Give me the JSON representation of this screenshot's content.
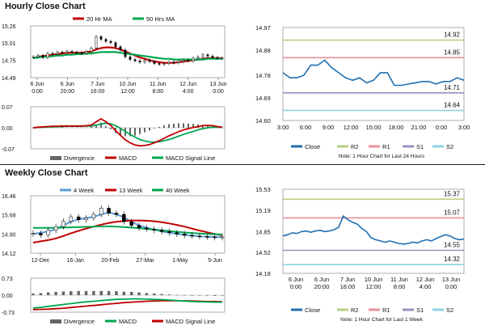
{
  "hourly": {
    "title": "Hourly Close Chart",
    "price_chart": {
      "type": "candlestick",
      "legend": [
        {
          "name": "20 Hr MA",
          "color": "#c00000"
        },
        {
          "name": "50 Hrs MA",
          "color": "#00a650"
        }
      ],
      "ylim": [
        14.49,
        15.26
      ],
      "y_ticks": [
        "15.26",
        "15.01",
        "14.75",
        "14.49"
      ],
      "x_ticks": [
        {
          "date": "6 Jun",
          "time": "0:00"
        },
        {
          "date": "6 Jun",
          "time": "20:00"
        },
        {
          "date": "7 Jun",
          "time": "16:00"
        },
        {
          "date": "10 Jun",
          "time": "12:00"
        },
        {
          "date": "11 Jun",
          "time": "8:00"
        },
        {
          "date": "12 Jun",
          "time": "4:00"
        },
        {
          "date": "13 Jun",
          "time": "0:00"
        }
      ],
      "close": [
        14.8,
        14.82,
        14.79,
        14.85,
        14.84,
        14.87,
        14.86,
        14.88,
        14.87,
        14.86,
        14.85,
        14.88,
        14.93,
        15.1,
        15.06,
        15.03,
        15.01,
        14.95,
        14.9,
        14.8,
        14.76,
        14.74,
        14.72,
        14.75,
        14.73,
        14.7,
        14.69,
        14.7,
        14.72,
        14.71,
        14.73,
        14.75,
        14.74,
        14.78,
        14.8,
        14.83,
        14.81,
        14.79,
        14.78,
        14.78
      ],
      "ma20": [
        14.78,
        14.8,
        14.81,
        14.82,
        14.83,
        14.84,
        14.85,
        14.86,
        14.86,
        14.86,
        14.86,
        14.87,
        14.88,
        14.91,
        14.93,
        14.94,
        14.94,
        14.93,
        14.91,
        14.88,
        14.85,
        14.82,
        14.79,
        14.77,
        14.75,
        14.73,
        14.72,
        14.71,
        14.71,
        14.71,
        14.72,
        14.73,
        14.74,
        14.75,
        14.76,
        14.77,
        14.78,
        14.78,
        14.78,
        14.78
      ],
      "ma50": [
        14.78,
        14.79,
        14.8,
        14.8,
        14.81,
        14.82,
        14.82,
        14.83,
        14.83,
        14.84,
        14.84,
        14.85,
        14.85,
        14.86,
        14.87,
        14.87,
        14.87,
        14.87,
        14.86,
        14.85,
        14.84,
        14.83,
        14.82,
        14.81,
        14.8,
        14.79,
        14.78,
        14.77,
        14.77,
        14.76,
        14.76,
        14.76,
        14.76,
        14.76,
        14.76,
        14.76,
        14.77,
        14.77,
        14.77,
        14.77
      ]
    },
    "macd_chart": {
      "type": "line+bar",
      "ylim": [
        -0.07,
        0.07
      ],
      "y_ticks": [
        "0.07",
        "0.00",
        "-0.07"
      ],
      "legend": [
        {
          "name": "Divergence",
          "color": "#666666"
        },
        {
          "name": "MACD",
          "color": "#c00000"
        },
        {
          "name": "MACD Signal Line",
          "color": "#00a650"
        }
      ],
      "macd": [
        0.0,
        0.002,
        0.003,
        0.004,
        0.005,
        0.005,
        0.006,
        0.006,
        0.006,
        0.006,
        0.006,
        0.007,
        0.009,
        0.02,
        0.03,
        0.02,
        0.008,
        -0.01,
        -0.025,
        -0.04,
        -0.05,
        -0.057,
        -0.06,
        -0.059,
        -0.056,
        -0.05,
        -0.043,
        -0.035,
        -0.027,
        -0.02,
        -0.013,
        -0.007,
        -0.003,
        0.001,
        0.004,
        0.007,
        0.008,
        0.007,
        0.004,
        0.002
      ],
      "signal": [
        0.0,
        0.001,
        0.002,
        0.003,
        0.003,
        0.004,
        0.004,
        0.005,
        0.005,
        0.005,
        0.005,
        0.006,
        0.006,
        0.009,
        0.013,
        0.015,
        0.013,
        0.007,
        -0.002,
        -0.012,
        -0.022,
        -0.031,
        -0.039,
        -0.044,
        -0.047,
        -0.048,
        -0.046,
        -0.043,
        -0.039,
        -0.034,
        -0.028,
        -0.022,
        -0.017,
        -0.012,
        -0.007,
        -0.003,
        0.0,
        0.002,
        0.002,
        0.002
      ],
      "divergence": [
        0.0,
        0.001,
        0.001,
        0.001,
        0.002,
        0.001,
        0.002,
        0.001,
        0.001,
        0.001,
        0.001,
        0.001,
        0.003,
        0.011,
        0.017,
        0.005,
        -0.005,
        -0.017,
        -0.023,
        -0.028,
        -0.028,
        -0.026,
        -0.021,
        -0.015,
        -0.009,
        -0.002,
        0.003,
        0.008,
        0.012,
        0.014,
        0.015,
        0.015,
        0.014,
        0.013,
        0.011,
        0.01,
        0.008,
        0.005,
        0.002,
        0.0
      ]
    },
    "levels_chart": {
      "type": "line",
      "ylim": [
        14.6,
        14.97
      ],
      "y_ticks": [
        "14.97",
        "14.88",
        "14.78",
        "14.69",
        "14.60"
      ],
      "x_ticks": [
        "3:00",
        "6:00",
        "9:00",
        "12:00",
        "15:00",
        "18:00",
        "21:00",
        "0:00",
        "3:00"
      ],
      "close": [
        14.79,
        14.77,
        14.77,
        14.78,
        14.82,
        14.82,
        14.84,
        14.81,
        14.79,
        14.77,
        14.76,
        14.77,
        14.75,
        14.76,
        14.79,
        14.79,
        14.74,
        14.74,
        14.745,
        14.75,
        14.755,
        14.755,
        14.745,
        14.755,
        14.755,
        14.77,
        14.76
      ],
      "levels": [
        {
          "name": "R2",
          "value": 14.92,
          "label": "14.92",
          "color": "#b5cf82"
        },
        {
          "name": "R1",
          "value": 14.85,
          "label": "14.85",
          "color": "#e8909a"
        },
        {
          "name": "S1",
          "value": 14.71,
          "label": "14.71",
          "color": "#9e8fbe"
        },
        {
          "name": "S2",
          "value": 14.64,
          "label": "14.64",
          "color": "#8fd3e0"
        }
      ],
      "legend": [
        {
          "name": "Close",
          "color": "#1f6fb2"
        },
        {
          "name": "R2",
          "color": "#b5cf82"
        },
        {
          "name": "R1",
          "color": "#e8909a"
        },
        {
          "name": "S1",
          "color": "#9e8fbe"
        },
        {
          "name": "S2",
          "color": "#8fd3e0"
        }
      ],
      "note": "Note: 1 Hour Chart for Last 24 Hours"
    }
  },
  "weekly": {
    "title": "Weekly Close Chart",
    "price_chart": {
      "type": "candlestick",
      "legend": [
        {
          "name": "4 Week",
          "color": "#5b9bd5"
        },
        {
          "name": "13 Week",
          "color": "#c00000"
        },
        {
          "name": "40 Week",
          "color": "#00a650"
        }
      ],
      "ylim": [
        14.12,
        16.46
      ],
      "y_ticks": [
        "16.46",
        "15.68",
        "14.90",
        "14.12"
      ],
      "x_ticks": [
        "12-Dec",
        "16-Jan",
        "20-Feb",
        "27-Mar",
        "1-May",
        "5-Jun"
      ],
      "close": [
        14.92,
        14.86,
        15.05,
        15.2,
        15.42,
        15.6,
        15.48,
        15.55,
        15.7,
        15.95,
        15.75,
        15.7,
        15.4,
        15.25,
        15.15,
        15.1,
        15.05,
        15.0,
        14.95,
        14.9,
        14.85,
        14.82,
        14.8,
        14.78,
        14.76,
        14.78
      ],
      "ma4": [
        14.9,
        14.95,
        15.0,
        15.1,
        15.25,
        15.4,
        15.5,
        15.55,
        15.6,
        15.7,
        15.78,
        15.7,
        15.58,
        15.4,
        15.25,
        15.15,
        15.08,
        15.0,
        14.95,
        14.9,
        14.86,
        14.83,
        14.8,
        14.79,
        14.78,
        14.77
      ],
      "ma13": [
        14.55,
        14.6,
        14.65,
        14.72,
        14.82,
        14.93,
        15.03,
        15.12,
        15.2,
        15.28,
        15.35,
        15.4,
        15.43,
        15.45,
        15.45,
        15.44,
        15.42,
        15.38,
        15.33,
        15.27,
        15.2,
        15.12,
        15.04,
        14.97,
        14.9,
        14.85
      ],
      "ma40": [
        15.15,
        15.15,
        15.15,
        15.15,
        15.16,
        15.17,
        15.18,
        15.19,
        15.2,
        15.21,
        15.21,
        15.2,
        15.18,
        15.16,
        15.14,
        15.11,
        15.08,
        15.05,
        15.02,
        14.99,
        14.96,
        14.94,
        14.92,
        14.9,
        14.89,
        14.88
      ]
    },
    "macd_chart": {
      "type": "line+bar",
      "ylim": [
        -0.73,
        0.73
      ],
      "y_ticks": [
        "0.73",
        "0.00",
        "-0.73"
      ],
      "legend": [
        {
          "name": "Divergence",
          "color": "#666666"
        },
        {
          "name": "MACD",
          "color": "#00a650"
        },
        {
          "name": "MACD Signal Line",
          "color": "#c00000"
        }
      ],
      "macd": [
        -0.55,
        -0.52,
        -0.48,
        -0.44,
        -0.4,
        -0.36,
        -0.32,
        -0.29,
        -0.26,
        -0.23,
        -0.2,
        -0.18,
        -0.17,
        -0.16,
        -0.16,
        -0.17,
        -0.18,
        -0.19,
        -0.21,
        -0.23,
        -0.25,
        -0.27,
        -0.28,
        -0.29,
        -0.3,
        -0.3
      ],
      "signal": [
        -0.62,
        -0.61,
        -0.6,
        -0.58,
        -0.56,
        -0.53,
        -0.5,
        -0.47,
        -0.44,
        -0.41,
        -0.38,
        -0.35,
        -0.32,
        -0.3,
        -0.28,
        -0.26,
        -0.25,
        -0.24,
        -0.24,
        -0.24,
        -0.24,
        -0.25,
        -0.26,
        -0.27,
        -0.27,
        -0.28
      ],
      "divergence": [
        0.07,
        0.09,
        0.12,
        0.14,
        0.16,
        0.17,
        0.18,
        0.18,
        0.18,
        0.18,
        0.18,
        0.17,
        0.15,
        0.14,
        0.12,
        0.09,
        0.07,
        0.05,
        0.03,
        0.01,
        -0.01,
        -0.02,
        -0.02,
        -0.02,
        -0.03,
        -0.02
      ]
    },
    "levels_chart": {
      "type": "line",
      "ylim": [
        14.18,
        15.53
      ],
      "y_ticks": [
        "15.53",
        "15.19",
        "14.85",
        "14.52",
        "14.18"
      ],
      "x_ticks": [
        {
          "date": "6 Jun",
          "time": "0:00"
        },
        {
          "date": "6 Jun",
          "time": "20:00"
        },
        {
          "date": "7 Jun",
          "time": "16:00"
        },
        {
          "date": "10 Jun",
          "time": "12:00"
        },
        {
          "date": "11 Jun",
          "time": "8:00"
        },
        {
          "date": "12 Jun",
          "time": "4:00"
        },
        {
          "date": "13 Jun",
          "time": "0:00"
        }
      ],
      "close": [
        14.78,
        14.8,
        14.83,
        14.82,
        14.85,
        14.86,
        14.84,
        14.86,
        14.87,
        14.85,
        14.86,
        14.88,
        14.92,
        15.1,
        15.04,
        15.0,
        14.97,
        14.9,
        14.85,
        14.75,
        14.72,
        14.7,
        14.68,
        14.7,
        14.68,
        14.66,
        14.65,
        14.66,
        14.68,
        14.67,
        14.7,
        14.72,
        14.7,
        14.74,
        14.77,
        14.8,
        14.78,
        14.74,
        14.72,
        14.73
      ],
      "levels": [
        {
          "name": "R2",
          "value": 15.37,
          "label": "15.37",
          "color": "#b5cf82"
        },
        {
          "name": "R1",
          "value": 15.07,
          "label": "15.07",
          "color": "#e8909a"
        },
        {
          "name": "S1",
          "value": 14.55,
          "label": "14.55",
          "color": "#9e8fbe"
        },
        {
          "name": "S2",
          "value": 14.32,
          "label": "14.32",
          "color": "#8fd3e0"
        }
      ],
      "legend": [
        {
          "name": "Close",
          "color": "#1f6fb2"
        },
        {
          "name": "R2",
          "color": "#b5cf82"
        },
        {
          "name": "R1",
          "color": "#e8909a"
        },
        {
          "name": "S1",
          "color": "#9e8fbe"
        },
        {
          "name": "S2",
          "color": "#8fd3e0"
        }
      ],
      "note": "Note: 1 Hour Chart for Last 1 Week"
    }
  }
}
